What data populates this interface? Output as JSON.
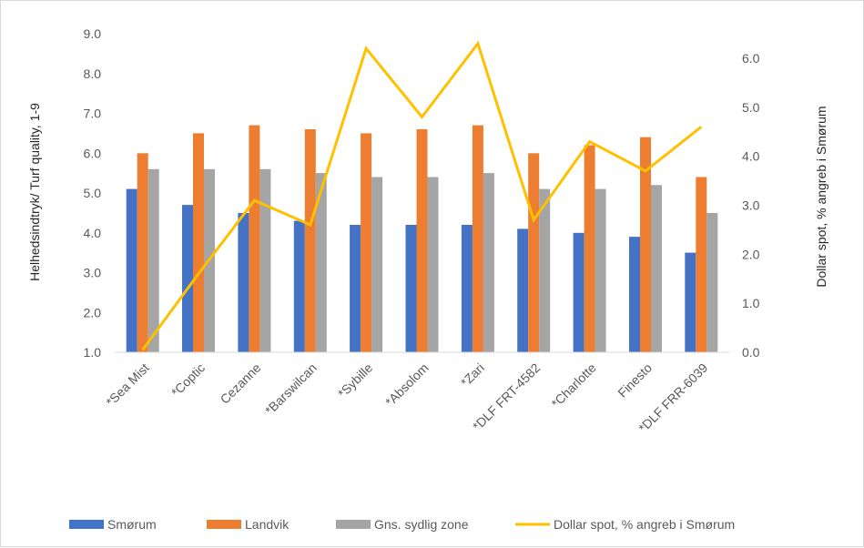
{
  "chart_data": {
    "type": "bar",
    "categories": [
      "*Sea Mist",
      "*Coptic",
      "Cezanne",
      "*Barswilcan",
      "*Sybille",
      "*Absolom",
      "*Zari",
      "*DLF FRT-4582",
      "*Charlotte",
      "Finesto",
      "*DLF FRR-6039"
    ],
    "series": [
      {
        "name": "Smørum",
        "type": "bar",
        "axis": "left",
        "color": "#4472C4",
        "values": [
          5.1,
          4.7,
          4.5,
          4.3,
          4.2,
          4.2,
          4.2,
          4.1,
          4.0,
          3.9,
          3.5
        ]
      },
      {
        "name": "Landvik",
        "type": "bar",
        "axis": "left",
        "color": "#ED7D31",
        "values": [
          6.0,
          6.5,
          6.7,
          6.6,
          6.5,
          6.6,
          6.7,
          6.0,
          6.2,
          6.4,
          5.4
        ]
      },
      {
        "name": "Gns. sydlig zone",
        "type": "bar",
        "axis": "left",
        "color": "#A5A5A5",
        "values": [
          5.6,
          5.6,
          5.6,
          5.5,
          5.4,
          5.4,
          5.5,
          5.1,
          5.1,
          5.2,
          4.5
        ]
      },
      {
        "name": "Dollar spot, % angreb i Smørum",
        "type": "line",
        "axis": "right",
        "color": "#FFC000",
        "values": [
          0.05,
          1.6,
          3.1,
          2.6,
          6.2,
          4.8,
          6.3,
          2.7,
          4.3,
          3.7,
          4.6
        ]
      }
    ],
    "ylabel": "Helhedsindtryk/ Turf quality, 1-9",
    "y2label": "Dollar spot, % angreb i Smørum",
    "ylim": [
      1.0,
      9.0
    ],
    "yticks": [
      "1.0",
      "2.0",
      "3.0",
      "4.0",
      "5.0",
      "6.0",
      "7.0",
      "8.0",
      "9.0"
    ],
    "y2lim": [
      0.0,
      6.5
    ],
    "y2ticks": [
      "0.0",
      "1.0",
      "2.0",
      "3.0",
      "4.0",
      "5.0",
      "6.0"
    ],
    "grid": false,
    "legend_position": "bottom"
  }
}
